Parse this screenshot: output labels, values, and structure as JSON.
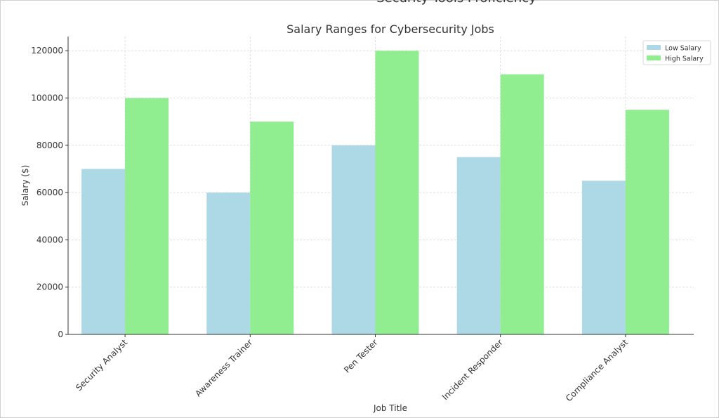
{
  "page": {
    "cut_off_title": "Security Tools Proficiency"
  },
  "colors": {
    "low": "#add8e6",
    "high": "#90ee90",
    "grid": "#d9d9d9",
    "axis": "#333333"
  },
  "chart_data": {
    "type": "bar",
    "title": "Salary Ranges for Cybersecurity Jobs",
    "xlabel": "Job Title",
    "ylabel": "Salary ($)",
    "categories": [
      "Security Analyst",
      "Awareness Trainer",
      "Pen Tester",
      "Incident Responder",
      "Compliance Analyst"
    ],
    "series": [
      {
        "name": "Low Salary",
        "color_key": "low",
        "values": [
          70000,
          60000,
          80000,
          75000,
          65000
        ]
      },
      {
        "name": "High Salary",
        "color_key": "high",
        "values": [
          100000,
          90000,
          120000,
          110000,
          95000
        ]
      }
    ],
    "yticks": [
      0,
      20000,
      40000,
      60000,
      80000,
      100000,
      120000
    ],
    "ytick_labels": [
      "0",
      "20000",
      "40000",
      "60000",
      "80000",
      "100000",
      "120000"
    ],
    "ylim": [
      0,
      126000
    ],
    "grid": true,
    "legend_position": "top-right"
  }
}
